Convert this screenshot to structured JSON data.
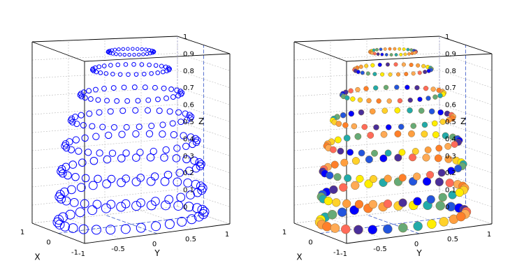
{
  "chart_data": [
    {
      "type": "scatter3d",
      "title": "",
      "xlabel": "X",
      "ylabel": "Y",
      "zlabel": "Z",
      "xlim": [
        -1,
        1
      ],
      "ylim": [
        -1,
        1
      ],
      "zlim": [
        0,
        1
      ],
      "x_ticks": [
        "-1",
        "0",
        "1"
      ],
      "y_ticks": [
        "-1",
        "-0.5",
        "0",
        "0.5",
        "1"
      ],
      "z_ticks": [
        "0",
        "0.1",
        "0.2",
        "0.3",
        "0.4",
        "0.5",
        "0.6",
        "0.7",
        "0.8",
        "0.9",
        "1"
      ],
      "grid": true,
      "marker": "circle-open",
      "marker_color": "#0000ff",
      "rings": {
        "z_levels": [
          0.04,
          0.18,
          0.32,
          0.46,
          0.6,
          0.74,
          0.88,
          0.98
        ],
        "radii": [
          0.95,
          0.93,
          0.91,
          0.86,
          0.78,
          0.66,
          0.5,
          0.3
        ],
        "points_per_ring": 30,
        "marker_size_bottom": 6.5,
        "marker_size_top": 2.2
      }
    },
    {
      "type": "scatter3d",
      "title": "",
      "xlabel": "X",
      "ylabel": "Y",
      "zlabel": "Z",
      "xlim": [
        -1,
        1
      ],
      "ylim": [
        -1,
        1
      ],
      "zlim": [
        0,
        1
      ],
      "x_ticks": [
        "-1",
        "0",
        "1"
      ],
      "y_ticks": [
        "-1",
        "-0.5",
        "0",
        "0.5",
        "1"
      ],
      "z_ticks": [
        "0",
        "0.1",
        "0.2",
        "0.3",
        "0.4",
        "0.5",
        "0.6",
        "0.7",
        "0.8",
        "0.9",
        "1"
      ],
      "grid": true,
      "marker": "circle-filled",
      "marker_edge_color": "#8a6d3b",
      "color_palette": [
        "#ff7f2a",
        "#ff9f40",
        "#ffd12a",
        "#ffee00",
        "#22aaaa",
        "#66aa77",
        "#2255dd",
        "#0000ff",
        "#4a2f9a",
        "#ff6a5a",
        "#ffaa55"
      ],
      "rings": {
        "z_levels": [
          0.04,
          0.18,
          0.32,
          0.46,
          0.6,
          0.74,
          0.88,
          0.98
        ],
        "radii": [
          0.95,
          0.93,
          0.91,
          0.86,
          0.78,
          0.66,
          0.5,
          0.3
        ],
        "points_per_ring": 30,
        "marker_size_bottom": 6.5,
        "marker_size_top": 2.2
      }
    }
  ]
}
